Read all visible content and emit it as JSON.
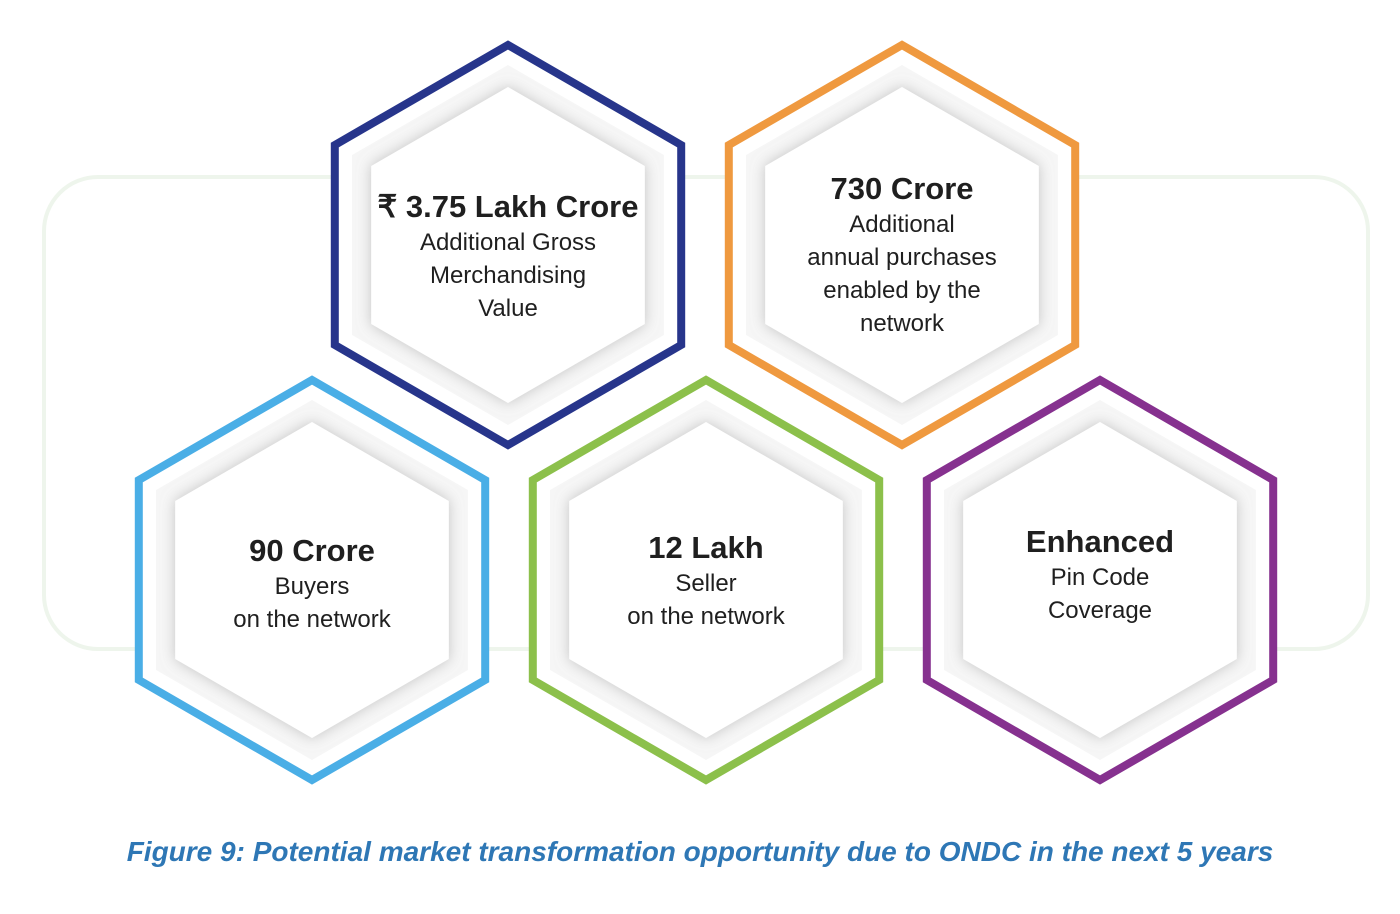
{
  "diagram": {
    "hexagons": [
      {
        "id": "gmv",
        "headline": "₹ 3.75 Lakh Crore",
        "lines": [
          "Additional Gross",
          "Merchandising",
          "Value"
        ],
        "color": "#27358b"
      },
      {
        "id": "purchases",
        "headline": "730 Crore",
        "lines": [
          "Additional",
          "annual purchases",
          "enabled by the",
          "network"
        ],
        "color": "#ef993f"
      },
      {
        "id": "buyers",
        "headline": "90 Crore",
        "lines": [
          "Buyers",
          "on the network"
        ],
        "color": "#4aaee6"
      },
      {
        "id": "sellers",
        "headline": "12 Lakh",
        "lines": [
          "Seller",
          "on the network"
        ],
        "color": "#8cc04b"
      },
      {
        "id": "pincode",
        "headline": "Enhanced",
        "lines": [
          "Pin Code",
          "Coverage"
        ],
        "color": "#86318f"
      }
    ]
  },
  "caption": "Figure 9: Potential market transformation opportunity due to ONDC in the next 5 years"
}
